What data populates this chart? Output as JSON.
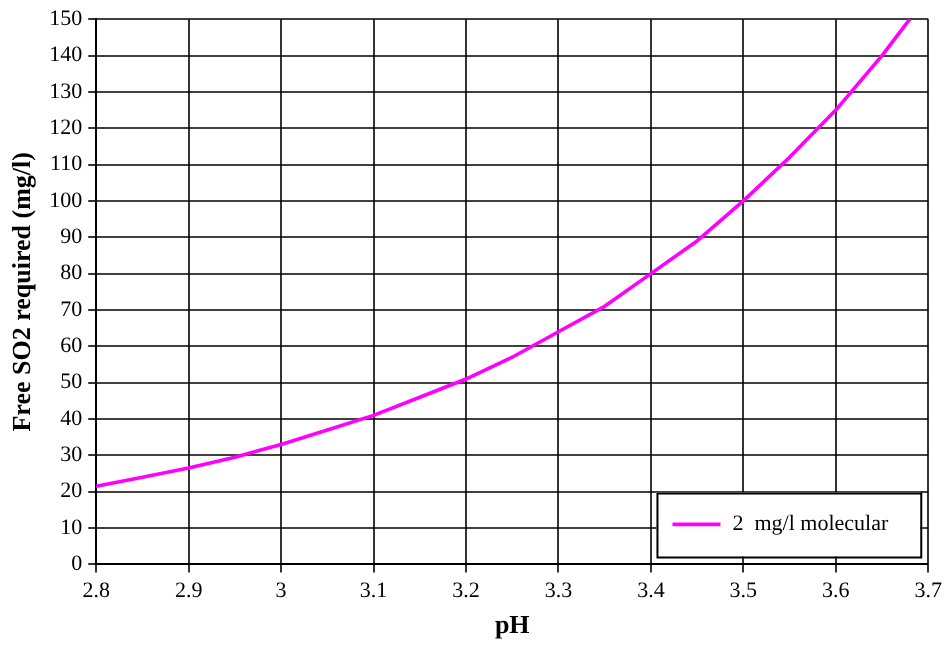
{
  "chart_data": {
    "type": "line",
    "xlabel": "pH",
    "ylabel": "Free SO2 required (mg/l)",
    "x": [
      2.8,
      2.85,
      2.9,
      2.95,
      3.0,
      3.05,
      3.1,
      3.15,
      3.2,
      3.25,
      3.3,
      3.35,
      3.4,
      3.45,
      3.5,
      3.55,
      3.6,
      3.65,
      3.68
    ],
    "series": [
      {
        "name": "2  mg/l molecular",
        "color": "#ff00ff",
        "values": [
          21.5,
          24,
          26.5,
          29.5,
          33,
          37,
          41,
          46,
          51,
          57,
          64,
          71,
          80,
          89,
          100,
          112,
          125,
          140,
          150
        ]
      }
    ],
    "xlim": [
      2.8,
      3.7
    ],
    "xticks": [
      2.8,
      2.9,
      3,
      3.1,
      3.2,
      3.3,
      3.4,
      3.5,
      3.6,
      3.7
    ],
    "ylim": [
      0,
      150
    ],
    "yticks": [
      0,
      10,
      20,
      30,
      40,
      50,
      60,
      70,
      80,
      90,
      100,
      110,
      120,
      130,
      140,
      150
    ],
    "grid": true,
    "legend": "bottom right",
    "marker": "none",
    "line_style": "solid"
  }
}
